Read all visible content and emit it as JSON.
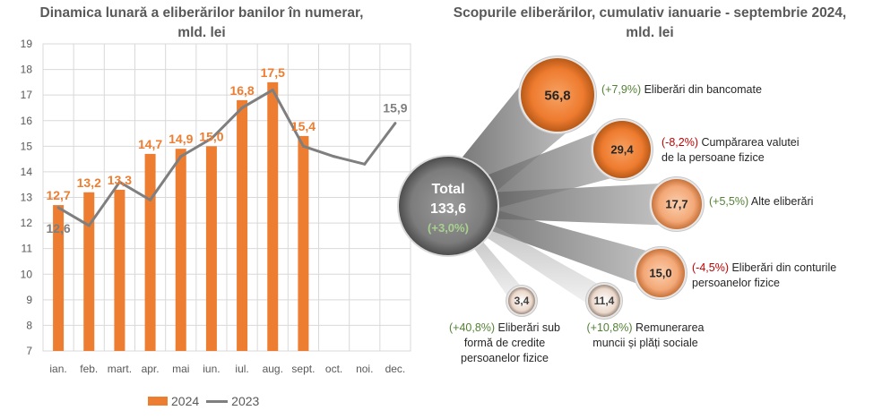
{
  "left_title": [
    "Dinamica lunară a eliberărilor banilor în numerar,",
    "mld. lei"
  ],
  "right_title": [
    "Scopurile eliberărilor, cumulativ ianuarie - septembrie 2024,",
    "mld. lei"
  ],
  "legend": {
    "bar": "2024",
    "line": "2023"
  },
  "colors": {
    "bar": "#ED7D31",
    "line": "#7F7F7F",
    "grid": "#D9D9D9",
    "label_orange": "#ED7D31",
    "label_grey": "#7F7F7F",
    "positive": "#548235",
    "negative": "#C00000",
    "text": "#595959"
  },
  "chart_data": [
    {
      "type": "bar",
      "title": "Dinamica lunară a eliberărilor banilor în numerar, mld. lei",
      "categories": [
        "ian.",
        "feb.",
        "mart.",
        "apr.",
        "mai",
        "iun.",
        "iul.",
        "aug.",
        "sept.",
        "oct.",
        "noi.",
        "dec."
      ],
      "ylim": [
        7,
        19
      ],
      "yticks": [
        7,
        8,
        9,
        10,
        11,
        12,
        13,
        14,
        15,
        16,
        17,
        18,
        19
      ],
      "grid": true,
      "legend_position": "bottom",
      "series": [
        {
          "name": "2024",
          "type": "bar",
          "values": [
            12.7,
            13.2,
            13.3,
            14.7,
            14.9,
            15.0,
            16.8,
            17.5,
            15.4,
            null,
            null,
            null
          ],
          "labels": [
            "12,7",
            "13,2",
            "13,3",
            "14,7",
            "14,9",
            "15,0",
            "16,8",
            "17,5",
            "15,4",
            "",
            "",
            ""
          ]
        },
        {
          "name": "2023",
          "type": "line",
          "values": [
            12.6,
            11.9,
            13.6,
            12.9,
            14.6,
            15.3,
            16.5,
            17.2,
            15.0,
            14.6,
            14.3,
            15.9
          ],
          "labels": [
            "12,6",
            "",
            "",
            "",
            "",
            "",
            "",
            "",
            "",
            "",
            "",
            "15,9"
          ]
        }
      ]
    },
    {
      "type": "bubble",
      "title": "Scopurile eliberărilor, cumulativ ianuarie - septembrie 2024, mld. lei",
      "total": {
        "label": "Total",
        "value": "133,6",
        "change": "(+3,0%)",
        "change_sign": "pos"
      },
      "items": [
        {
          "value": 56.8,
          "value_label": "56,8",
          "change": "(+7,9%)",
          "change_sign": "pos",
          "label": "Eliberări din bancomate"
        },
        {
          "value": 29.4,
          "value_label": "29,4",
          "change": "(-8,2%)",
          "change_sign": "neg",
          "label": "Cumpărarea valutei de la persoane fizice"
        },
        {
          "value": 17.7,
          "value_label": "17,7",
          "change": "(+5,5%)",
          "change_sign": "pos",
          "label": "Alte eliberări"
        },
        {
          "value": 15.0,
          "value_label": "15,0",
          "change": "(-4,5%)",
          "change_sign": "neg",
          "label": "Eliberări din conturile persoanelor fizice"
        },
        {
          "value": 11.4,
          "value_label": "11,4",
          "change": "(+10,8%)",
          "change_sign": "pos",
          "label": "Remunerarea muncii și plăți sociale"
        },
        {
          "value": 3.4,
          "value_label": "3,4",
          "change": "(+40,8%)",
          "change_sign": "pos",
          "label": "Eliberări sub formă de credite persoanelor fizice"
        }
      ]
    }
  ]
}
